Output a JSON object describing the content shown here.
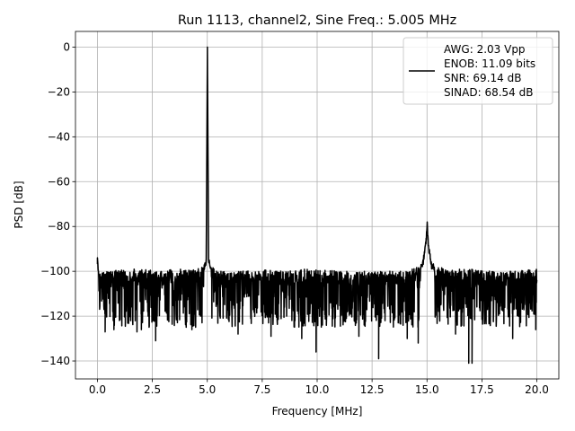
{
  "chart_data": {
    "type": "line",
    "title": "Run 1113, channel2, Sine Freq.: 5.005 MHz",
    "xlabel": "Frequency [MHz]",
    "ylabel": "PSD [dB]",
    "xlim": [
      -1.0,
      21.0
    ],
    "ylim": [
      -148,
      7
    ],
    "xticks": [
      0.0,
      2.5,
      5.0,
      7.5,
      10.0,
      12.5,
      15.0,
      17.5,
      20.0
    ],
    "xtick_labels": [
      "0.0",
      "2.5",
      "5.0",
      "7.5",
      "10.0",
      "12.5",
      "15.0",
      "17.5",
      "20.0"
    ],
    "yticks": [
      0,
      -20,
      -40,
      -60,
      -80,
      -100,
      -120,
      -140
    ],
    "ytick_labels": [
      "0",
      "−20",
      "−40",
      "−60",
      "−80",
      "−100",
      "−120",
      "−140"
    ],
    "grid": true,
    "legend_position": "top-right",
    "legend_lines": [
      "AWG: 2.03 Vpp",
      "ENOB: 11.09 bits",
      "SNR: 69.14 dB",
      "SINAD: 68.54 dB"
    ],
    "line_color": "#000000",
    "noise_floor": {
      "typical_upper": -100,
      "typical_lower": -120,
      "extreme_min": -141
    },
    "peaks": [
      {
        "x": 0.0,
        "y": -94
      },
      {
        "x": 5.005,
        "y": 0
      },
      {
        "x": 15.01,
        "y": -78
      }
    ],
    "series": [
      {
        "x_start": 0.0,
        "x_end": 20.0,
        "upper_envelope": [
          [
            0.0,
            -94
          ],
          [
            0.05,
            -100
          ],
          [
            0.3,
            -100
          ],
          [
            1.0,
            -99
          ],
          [
            2.0,
            -99
          ],
          [
            3.0,
            -100
          ],
          [
            3.5,
            -99
          ],
          [
            4.0,
            -99
          ],
          [
            4.5,
            -99
          ],
          [
            4.8,
            -98
          ],
          [
            4.95,
            -94
          ],
          [
            5.005,
            0
          ],
          [
            5.06,
            -94
          ],
          [
            5.2,
            -98
          ],
          [
            5.5,
            -100
          ],
          [
            6.5,
            -100
          ],
          [
            7.5,
            -99
          ],
          [
            8.5,
            -100
          ],
          [
            9.5,
            -99
          ],
          [
            10.0,
            -99
          ],
          [
            11.0,
            -100
          ],
          [
            12.0,
            -100
          ],
          [
            13.0,
            -100
          ],
          [
            14.0,
            -100
          ],
          [
            14.6,
            -98
          ],
          [
            14.8,
            -96
          ],
          [
            14.95,
            -86
          ],
          [
            15.01,
            -78
          ],
          [
            15.06,
            -87
          ],
          [
            15.2,
            -96
          ],
          [
            15.5,
            -98
          ],
          [
            16.0,
            -99
          ],
          [
            17.0,
            -99
          ],
          [
            18.0,
            -100
          ],
          [
            19.0,
            -100
          ],
          [
            20.0,
            -99
          ]
        ],
        "lower_spikes": [
          [
            0.35,
            -127
          ],
          [
            0.75,
            -126
          ],
          [
            1.8,
            -127
          ],
          [
            2.0,
            -126
          ],
          [
            2.65,
            -131
          ],
          [
            4.3,
            -126
          ],
          [
            6.4,
            -128
          ],
          [
            7.9,
            -129
          ],
          [
            9.3,
            -130
          ],
          [
            9.95,
            -136
          ],
          [
            11.9,
            -129
          ],
          [
            12.8,
            -139
          ],
          [
            14.1,
            -130
          ],
          [
            14.6,
            -132
          ],
          [
            16.3,
            -128
          ],
          [
            16.9,
            -141
          ],
          [
            17.05,
            -141
          ],
          [
            18.9,
            -130
          ],
          [
            19.95,
            -126
          ]
        ]
      }
    ]
  }
}
